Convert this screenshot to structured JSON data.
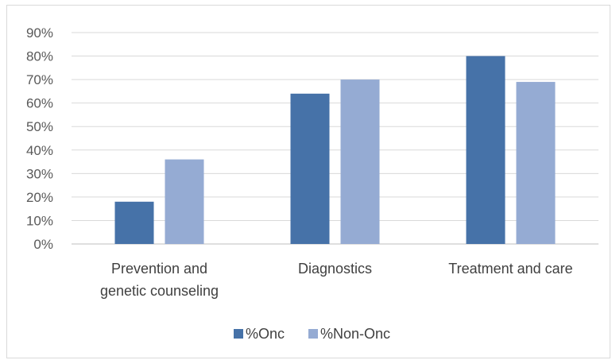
{
  "chart_data": {
    "type": "bar",
    "categories": [
      [
        "Prevention and",
        "genetic counseling"
      ],
      [
        "Diagnostics"
      ],
      [
        "Treatment and care"
      ]
    ],
    "series": [
      {
        "name": "%Onc",
        "color": "#4672a8",
        "values": [
          18,
          64,
          80
        ]
      },
      {
        "name": "%Non-Onc",
        "color": "#95abd3",
        "values": [
          36,
          70,
          69
        ]
      }
    ],
    "ylim": [
      0,
      90
    ],
    "y_ticks": [
      "0%",
      "10%",
      "20%",
      "30%",
      "40%",
      "50%",
      "60%",
      "70%",
      "80%",
      "90%"
    ],
    "grid": true,
    "legend_position": "bottom"
  }
}
